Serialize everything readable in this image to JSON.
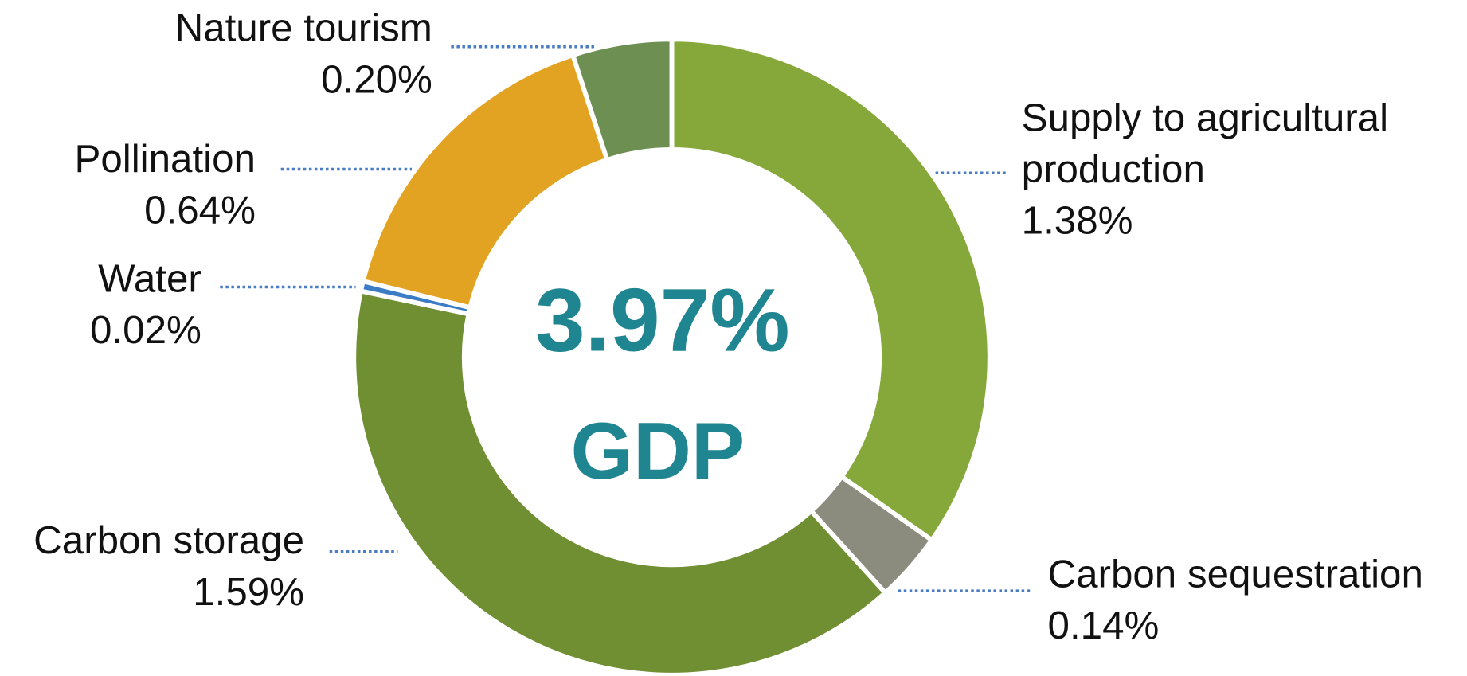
{
  "chart_data": {
    "type": "donut",
    "categories": [
      "Supply to agricultural production",
      "Carbon sequestration",
      "Carbon storage",
      "Water",
      "Pollination",
      "Nature tourism"
    ],
    "values": [
      1.38,
      0.14,
      1.59,
      0.02,
      0.64,
      0.2
    ],
    "value_labels": [
      "1.38%",
      "0.14%",
      "1.59%",
      "0.02%",
      "0.64%",
      "0.20%"
    ],
    "colors": [
      "#86a83a",
      "#8c8c7e",
      "#6f8f32",
      "#3b7cc4",
      "#e3a322",
      "#6d8f52"
    ],
    "center_label": "3.97%",
    "center_sublabel": "GDP"
  }
}
